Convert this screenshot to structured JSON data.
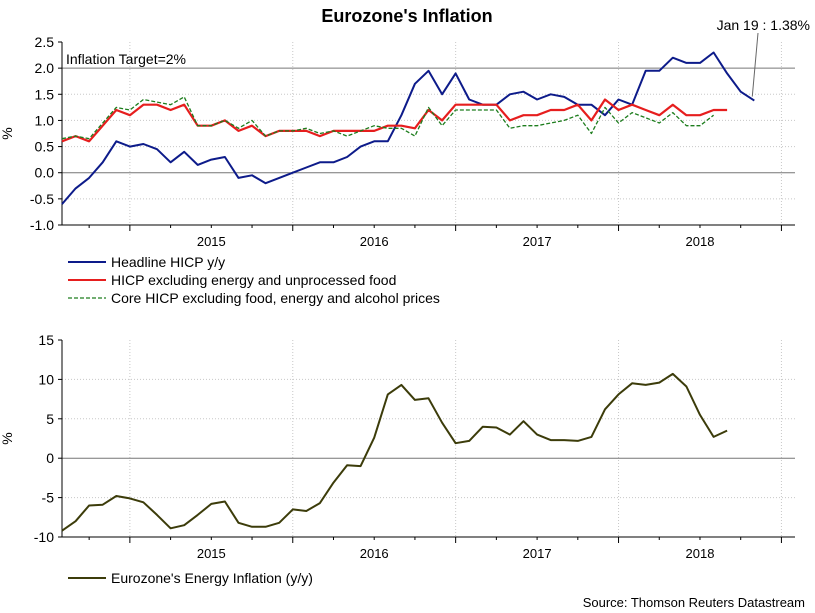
{
  "title": "Eurozone's Inflation",
  "source": "Source: Thomson Reuters Datastream",
  "colors": {
    "headline": "#0d1b8a",
    "excl_energy_unprocessed": "#e61e1e",
    "core": "#1d7d1d",
    "energy": "#3c3c0a",
    "grid": "#c8c8c8",
    "axis": "#000000"
  },
  "chart_data": [
    {
      "type": "line",
      "title": "Eurozone's Inflation",
      "ylabel": "%",
      "xlabel": "",
      "ylim": [
        -1.0,
        2.5
      ],
      "yticks": [
        -1.0,
        -0.5,
        0.0,
        0.5,
        1.0,
        1.5,
        2.0,
        2.5
      ],
      "ytick_labels": [
        "-1.0",
        "-0.5",
        "0.0",
        "0.5",
        "1.0",
        "1.5",
        "2.0",
        "2.5"
      ],
      "x_start": "2014-08",
      "x_end": "2019-02",
      "xtick_labels": [
        "2015",
        "2016",
        "2017",
        "2018"
      ],
      "annotations": {
        "target_label": "Inflation Target=2%",
        "target_value": 2.0,
        "callout": "Jan 19 : 1.38%"
      },
      "series": [
        {
          "name": "Headline HICP y/y",
          "style": "solid",
          "start": "2014-08",
          "values": [
            -0.6,
            -0.3,
            -0.1,
            0.2,
            0.6,
            0.5,
            0.55,
            0.45,
            0.2,
            0.4,
            0.15,
            0.25,
            0.3,
            -0.1,
            -0.05,
            -0.2,
            -0.1,
            0.0,
            0.1,
            0.2,
            0.2,
            0.3,
            0.5,
            0.6,
            0.6,
            1.1,
            1.7,
            1.95,
            1.5,
            1.9,
            1.4,
            1.3,
            1.3,
            1.5,
            1.55,
            1.4,
            1.5,
            1.45,
            1.3,
            1.3,
            1.1,
            1.4,
            1.3,
            1.95,
            1.95,
            2.2,
            2.1,
            2.1,
            2.3,
            1.9,
            1.55,
            1.38
          ]
        },
        {
          "name": "HICP excluding energy and unprocessed food",
          "style": "solid",
          "start": "2014-08",
          "values": [
            0.6,
            0.7,
            0.6,
            0.9,
            1.2,
            1.1,
            1.3,
            1.3,
            1.2,
            1.3,
            0.9,
            0.9,
            1.0,
            0.8,
            0.9,
            0.7,
            0.8,
            0.8,
            0.8,
            0.7,
            0.8,
            0.8,
            0.8,
            0.8,
            0.9,
            0.9,
            0.85,
            1.2,
            1.0,
            1.3,
            1.3,
            1.3,
            1.3,
            1.0,
            1.1,
            1.1,
            1.2,
            1.2,
            1.3,
            1.0,
            1.4,
            1.2,
            1.3,
            1.2,
            1.1,
            1.3,
            1.1,
            1.1,
            1.2,
            1.2
          ]
        },
        {
          "name": "Core HICP excluding food, energy and alcohol prices",
          "style": "dashed",
          "start": "2014-08",
          "values": [
            0.65,
            0.7,
            0.65,
            0.95,
            1.25,
            1.2,
            1.4,
            1.35,
            1.3,
            1.45,
            0.9,
            0.9,
            1.0,
            0.85,
            1.0,
            0.7,
            0.8,
            0.8,
            0.85,
            0.75,
            0.8,
            0.7,
            0.8,
            0.9,
            0.85,
            0.85,
            0.7,
            1.25,
            0.9,
            1.2,
            1.2,
            1.2,
            1.2,
            0.85,
            0.9,
            0.9,
            0.95,
            1.0,
            1.1,
            0.75,
            1.25,
            0.95,
            1.15,
            1.05,
            0.95,
            1.15,
            0.9,
            0.9,
            1.1
          ]
        }
      ]
    },
    {
      "type": "line",
      "title": "",
      "ylabel": "%",
      "xlabel": "",
      "ylim": [
        -10,
        15
      ],
      "yticks": [
        -10,
        -5,
        0,
        5,
        10,
        15
      ],
      "ytick_labels": [
        "-10",
        "-5",
        "0",
        "5",
        "10",
        "15"
      ],
      "x_start": "2014-08",
      "x_end": "2019-02",
      "xtick_labels": [
        "2015",
        "2016",
        "2017",
        "2018"
      ],
      "series": [
        {
          "name": "Eurozone's Energy Inflation (y/y)",
          "style": "solid",
          "start": "2014-08",
          "values": [
            -9.2,
            -8.0,
            -6.0,
            -5.9,
            -4.8,
            -5.1,
            -5.6,
            -7.2,
            -8.9,
            -8.5,
            -7.2,
            -5.8,
            -5.5,
            -8.2,
            -8.7,
            -8.7,
            -8.2,
            -6.5,
            -6.7,
            -5.7,
            -3.1,
            -0.9,
            -1.0,
            2.6,
            8.1,
            9.3,
            7.4,
            7.6,
            4.5,
            1.9,
            2.2,
            4.0,
            3.9,
            3.0,
            4.7,
            3.0,
            2.3,
            2.3,
            2.2,
            2.7,
            6.2,
            8.1,
            9.5,
            9.3,
            9.6,
            10.7,
            9.1,
            5.5,
            2.7,
            3.5
          ]
        }
      ]
    }
  ]
}
